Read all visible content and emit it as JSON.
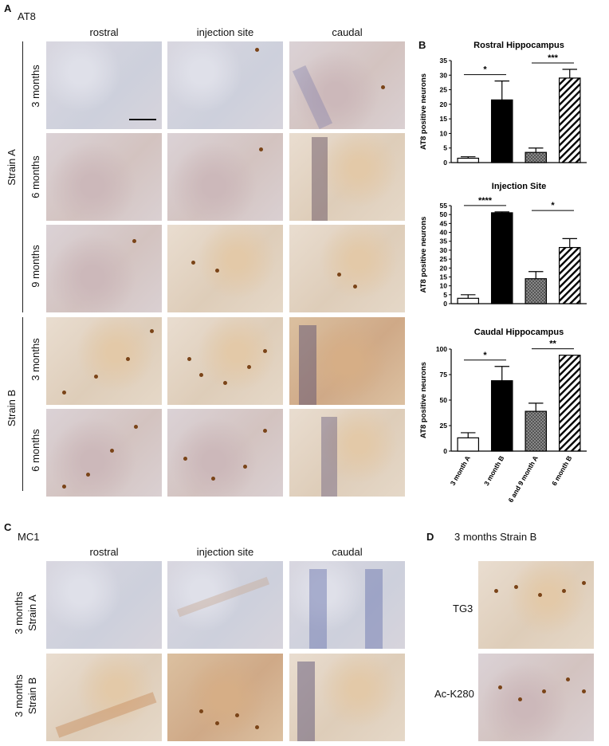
{
  "panelA": {
    "letter": "A",
    "stain": "AT8",
    "columns": [
      "rostral",
      "injection site",
      "caudal"
    ],
    "groups": [
      {
        "name": "Strain A",
        "rows": [
          "3 months",
          "6 months",
          "9 months"
        ]
      },
      {
        "name": "Strain B",
        "rows": [
          "3 months",
          "6 months"
        ]
      }
    ]
  },
  "panelB": {
    "letter": "B"
  },
  "panelC": {
    "letter": "C",
    "stain": "MC1",
    "columns": [
      "rostral",
      "injection site",
      "caudal"
    ],
    "rows": [
      {
        "line1": "3 months",
        "line2": "Strain A"
      },
      {
        "line1": "3 months",
        "line2": "Strain B"
      }
    ]
  },
  "panelD": {
    "letter": "D",
    "title": "3 months Strain B",
    "rows": [
      "TG3",
      "Ac-K280"
    ]
  },
  "chart_data": [
    {
      "type": "bar",
      "title": "Rostral Hippocampus",
      "ylabel": "AT8 positive neurons",
      "categories": [
        "3 month A",
        "3 month B",
        "6 and 9 month A",
        "6 month B"
      ],
      "values": [
        1.5,
        21.5,
        3.5,
        29
      ],
      "errors": [
        0.5,
        6.5,
        1.5,
        3
      ],
      "fills": [
        "white",
        "black",
        "crosshatch",
        "diagonal"
      ],
      "ylim": [
        0,
        35
      ],
      "yticks": [
        0,
        5,
        10,
        15,
        20,
        25,
        30,
        35
      ],
      "significance": [
        {
          "from": 0,
          "to": 1,
          "label": "*"
        },
        {
          "from": 2,
          "to": 3,
          "label": "***"
        }
      ]
    },
    {
      "type": "bar",
      "title": "Injection Site",
      "ylabel": "AT8 positive neurons",
      "categories": [
        "3 month A",
        "3 month B",
        "6 and 9 month A",
        "6 month B"
      ],
      "values": [
        3,
        51,
        14,
        31.5
      ],
      "errors": [
        2,
        0.5,
        4,
        5
      ],
      "fills": [
        "white",
        "black",
        "crosshatch",
        "diagonal"
      ],
      "ylim": [
        0,
        55
      ],
      "yticks": [
        0,
        5,
        10,
        15,
        20,
        25,
        30,
        35,
        40,
        45,
        50,
        55
      ],
      "significance": [
        {
          "from": 0,
          "to": 1,
          "label": "****"
        },
        {
          "from": 2,
          "to": 3,
          "label": "*"
        }
      ]
    },
    {
      "type": "bar",
      "title": "Caudal Hippocampus",
      "ylabel": "AT8 positive neurons",
      "categories": [
        "3 month A",
        "3 month B",
        "6 and 9 month A",
        "6 month B"
      ],
      "values": [
        13,
        69,
        39,
        94
      ],
      "errors": [
        5,
        14,
        8,
        0
      ],
      "fills": [
        "white",
        "black",
        "crosshatch",
        "diagonal"
      ],
      "ylim": [
        0,
        100
      ],
      "yticks": [
        0,
        25,
        50,
        75,
        100
      ],
      "significance": [
        {
          "from": 0,
          "to": 1,
          "label": "*"
        },
        {
          "from": 2,
          "to": 3,
          "label": "**"
        }
      ]
    }
  ]
}
